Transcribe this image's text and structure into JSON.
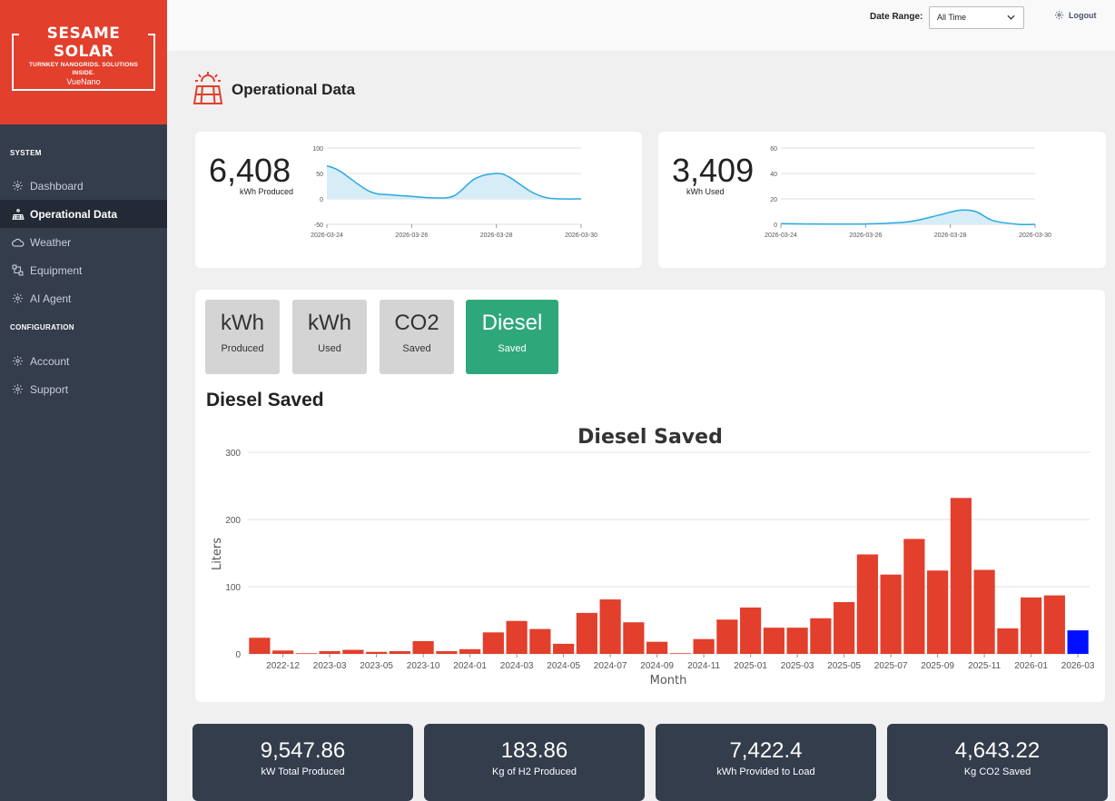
{
  "brand": {
    "name": "SESAME SOLAR",
    "tagline": "TURNKEY NANOGRIDS. SOLUTIONS INSIDE.",
    "sub": "VueNano"
  },
  "nav": {
    "system_label": "SYSTEM",
    "config_label": "CONFIGURATION",
    "items": [
      "Dashboard",
      "Operational Data",
      "Weather",
      "Equipment",
      "AI Agent"
    ],
    "config_items": [
      "Account",
      "Support"
    ]
  },
  "topbar": {
    "date_range_label": "Date Range:",
    "date_range_value": "All Time",
    "logout": "Logout"
  },
  "page_title": "Operational Data",
  "kpi": {
    "produced": {
      "value": "6,408",
      "label": "kWh Produced"
    },
    "used": {
      "value": "3,409",
      "label": "kWh Used"
    }
  },
  "tabs": [
    {
      "top": "kWh",
      "bottom": "Produced"
    },
    {
      "top": "kWh",
      "bottom": "Used"
    },
    {
      "top": "CO2",
      "bottom": "Saved"
    },
    {
      "top": "Diesel",
      "bottom": "Saved"
    }
  ],
  "chart_heading": "Diesel Saved",
  "stats": [
    {
      "value": "9,547.86",
      "label": "kW Total Produced"
    },
    {
      "value": "183.86",
      "label": "Kg of H2 Produced"
    },
    {
      "value": "7,422.4",
      "label": "kWh Provided to Load"
    },
    {
      "value": "4,643.22",
      "label": "Kg CO2 Saved"
    }
  ],
  "colors": {
    "accent": "#e23f2c",
    "active_tab": "#2ea87a",
    "bar": "#e23f2c",
    "bar_highlight": "#0010ff",
    "spark": "#29a8e0"
  },
  "chart_data": [
    {
      "type": "area",
      "title": "",
      "x_ticks": [
        "2026-03-24",
        "2026-03-26",
        "2026-03-28",
        "2026-03-30"
      ],
      "y_ticks": [
        100,
        50,
        0,
        -50
      ],
      "ylim": [
        -50,
        100
      ],
      "x": [
        0,
        0.3,
        1,
        1.5,
        2,
        2.5,
        3,
        3.5,
        4,
        4.3,
        4.8,
        5.2,
        5.6,
        6
      ],
      "values": [
        65,
        55,
        15,
        8,
        5,
        2,
        6,
        40,
        50,
        43,
        15,
        2,
        0,
        0
      ]
    },
    {
      "type": "area",
      "title": "",
      "x_ticks": [
        "2026-03-24",
        "2026-03-26",
        "2026-03-28",
        "2026-03-30"
      ],
      "y_ticks": [
        60,
        40,
        20,
        0
      ],
      "ylim": [
        0,
        60
      ],
      "x": [
        0,
        1,
        2,
        3,
        3.7,
        4.2,
        4.6,
        5,
        5.6,
        6
      ],
      "values": [
        0.5,
        0.2,
        0.3,
        2,
        7,
        11,
        10,
        3,
        0,
        0
      ]
    },
    {
      "type": "bar",
      "title": "Diesel Saved",
      "xlabel": "Month",
      "ylabel": "Liters",
      "ylim": [
        0,
        300
      ],
      "y_ticks": [
        0,
        100,
        200,
        300
      ],
      "x_ticks": [
        "2022-12",
        "2023-03",
        "2023-05",
        "2023-10",
        "2024-01",
        "2024-03",
        "2024-05",
        "2024-07",
        "2024-09",
        "2024-11",
        "2025-01",
        "2025-03",
        "2025-05",
        "2025-07",
        "2025-09",
        "2025-11",
        "2026-01",
        "2026-03"
      ],
      "values": [
        24,
        5,
        1,
        4,
        6,
        3,
        4,
        19,
        4,
        7,
        32,
        49,
        37,
        15,
        61,
        81,
        47,
        18,
        1,
        22,
        51,
        69,
        39,
        39,
        53,
        77,
        148,
        118,
        171,
        124,
        232,
        125,
        38,
        84,
        87,
        35
      ],
      "highlight_last": true
    }
  ]
}
